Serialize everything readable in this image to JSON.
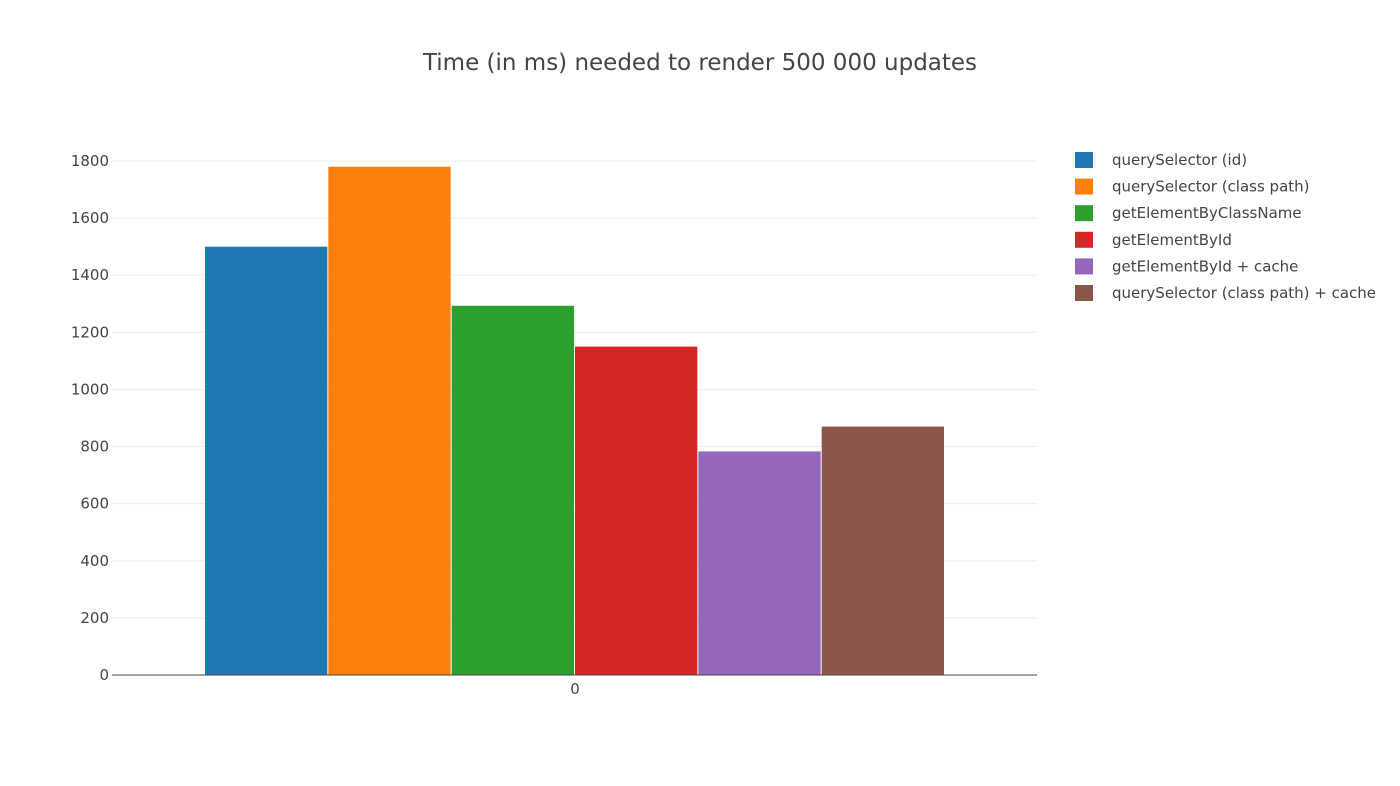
{
  "chart_data": {
    "type": "bar",
    "title": "Time (in ms) needed to render 500 000 updates",
    "categories": [
      "0"
    ],
    "xlabel": "",
    "ylabel": "",
    "ylim": [
      0,
      1850
    ],
    "yticks": [
      0,
      200,
      400,
      600,
      800,
      1000,
      1200,
      1400,
      1600,
      1800
    ],
    "grid": true,
    "legend_position": "right",
    "series": [
      {
        "name": "querySelector (id)",
        "values": [
          1500
        ],
        "color": "#1f77b4"
      },
      {
        "name": "querySelector (class path)",
        "values": [
          1780
        ],
        "color": "#ff7f0e"
      },
      {
        "name": "getElementByClassName",
        "values": [
          1293
        ],
        "color": "#2ca02c"
      },
      {
        "name": "getElementById",
        "values": [
          1150
        ],
        "color": "#d62728"
      },
      {
        "name": "getElementById + cache",
        "values": [
          783
        ],
        "color": "#9467bd"
      },
      {
        "name": "querySelector (class path) + cache",
        "values": [
          870
        ],
        "color": "#8c564b"
      }
    ]
  }
}
